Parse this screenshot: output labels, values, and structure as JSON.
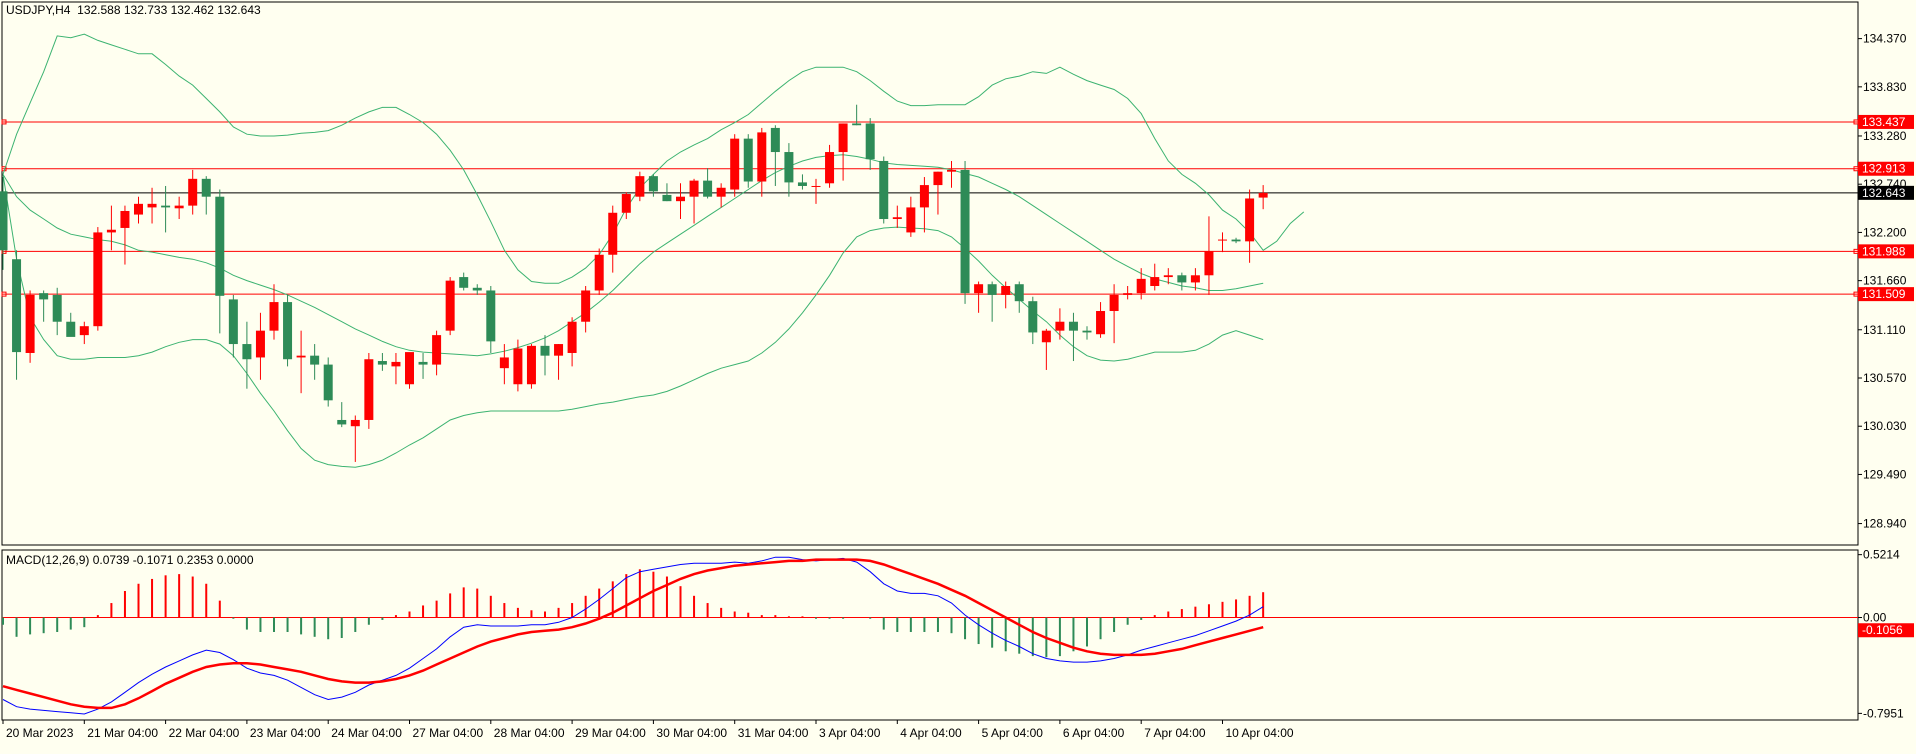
{
  "header": {
    "symbol": "USDJPY,H4",
    "ohlc": "132.588 132.733 132.462 132.643",
    "macd_label": "MACD(12,26,9) 0.0739 -0.1071 0.2353 0.0000"
  },
  "colors": {
    "background": "#FFFFF0",
    "bull": "#FF0000",
    "bear": "#2E8B57",
    "bands": "#3CB371",
    "level_line": "#FF0000",
    "price_line": "#000000",
    "macd_line": "#0000FF",
    "signal_line": "#FF0000"
  },
  "chart_data": [
    {
      "type": "candlestick",
      "title": "USDJPY,H4",
      "ylim": [
        128.7,
        134.78
      ],
      "y_ticks": [
        "134.370",
        "133.830",
        "133.280",
        "132.740",
        "132.200",
        "131.660",
        "131.110",
        "130.570",
        "130.030",
        "129.490",
        "128.940"
      ],
      "x_ticks": [
        "20 Mar 2023",
        "21 Mar 04:00",
        "22 Mar 04:00",
        "23 Mar 04:00",
        "24 Mar 04:00",
        "27 Mar 04:00",
        "28 Mar 04:00",
        "29 Mar 04:00",
        "30 Mar 04:00",
        "31 Mar 04:00",
        "3 Apr 04:00",
        "4 Apr 04:00",
        "5 Apr 04:00",
        "6 Apr 04:00",
        "7 Apr 04:00",
        "10 Apr 04:00"
      ],
      "levels": [
        "133.437",
        "132.913",
        "131.988",
        "131.509"
      ],
      "current_price": "132.643",
      "candles": [
        [
          132.66,
          132.82,
          131.78,
          132.0
        ],
        [
          131.9,
          132.0,
          130.55,
          130.86
        ],
        [
          130.85,
          131.55,
          130.74,
          131.5
        ],
        [
          131.52,
          131.55,
          131.2,
          131.45
        ],
        [
          131.5,
          131.58,
          131.05,
          131.2
        ],
        [
          131.2,
          131.3,
          131.08,
          131.03
        ],
        [
          131.05,
          131.2,
          130.95,
          131.15
        ],
        [
          131.15,
          132.26,
          131.1,
          132.2
        ],
        [
          132.2,
          132.5,
          132.0,
          132.23
        ],
        [
          132.25,
          132.5,
          131.84,
          132.44
        ],
        [
          132.4,
          132.6,
          132.3,
          132.52
        ],
        [
          132.48,
          132.7,
          132.3,
          132.52
        ],
        [
          132.5,
          132.72,
          132.2,
          132.48
        ],
        [
          132.47,
          132.6,
          132.35,
          132.5
        ],
        [
          132.5,
          132.9,
          132.4,
          132.8
        ],
        [
          132.8,
          132.83,
          132.4,
          132.6
        ],
        [
          132.6,
          132.68,
          131.07,
          131.49
        ],
        [
          131.45,
          131.5,
          130.8,
          130.95
        ],
        [
          130.95,
          131.2,
          130.45,
          130.78
        ],
        [
          130.8,
          131.3,
          130.55,
          131.1
        ],
        [
          131.1,
          131.62,
          131.0,
          131.42
        ],
        [
          131.42,
          131.5,
          130.7,
          130.78
        ],
        [
          130.8,
          131.1,
          130.4,
          130.82
        ],
        [
          130.82,
          130.95,
          130.55,
          130.72
        ],
        [
          130.72,
          130.8,
          130.25,
          130.32
        ],
        [
          130.1,
          130.3,
          130.02,
          130.05
        ],
        [
          130.03,
          130.15,
          129.63,
          130.1
        ],
        [
          130.1,
          130.85,
          130.0,
          130.78
        ],
        [
          130.76,
          130.85,
          130.65,
          130.72
        ],
        [
          130.7,
          130.85,
          130.5,
          130.75
        ],
        [
          130.5,
          130.8,
          130.45,
          130.86
        ],
        [
          130.75,
          130.85,
          130.56,
          130.72
        ],
        [
          130.72,
          131.1,
          130.6,
          131.05
        ],
        [
          131.1,
          131.7,
          131.05,
          131.66
        ],
        [
          131.7,
          131.75,
          131.55,
          131.58
        ],
        [
          131.58,
          131.62,
          131.5,
          131.55
        ],
        [
          131.55,
          131.6,
          130.85,
          130.98
        ],
        [
          130.68,
          130.95,
          130.5,
          130.8
        ],
        [
          130.5,
          131.0,
          130.42,
          130.9
        ],
        [
          130.5,
          130.95,
          130.45,
          130.93
        ],
        [
          130.93,
          131.05,
          130.6,
          130.82
        ],
        [
          130.82,
          130.95,
          130.55,
          130.95
        ],
        [
          130.85,
          131.25,
          130.7,
          131.2
        ],
        [
          131.2,
          131.6,
          131.08,
          131.55
        ],
        [
          131.55,
          132.02,
          131.5,
          131.95
        ],
        [
          131.95,
          132.5,
          131.75,
          132.42
        ],
        [
          132.42,
          132.65,
          132.35,
          132.63
        ],
        [
          132.6,
          132.88,
          132.55,
          132.83
        ],
        [
          132.83,
          132.85,
          132.6,
          132.66
        ],
        [
          132.62,
          132.75,
          132.55,
          132.55
        ],
        [
          132.55,
          132.75,
          132.35,
          132.6
        ],
        [
          132.6,
          132.8,
          132.3,
          132.78
        ],
        [
          132.78,
          132.92,
          132.58,
          132.6
        ],
        [
          132.6,
          132.75,
          132.48,
          132.7
        ],
        [
          132.68,
          133.3,
          132.6,
          133.25
        ],
        [
          133.25,
          133.3,
          132.7,
          132.77
        ],
        [
          132.77,
          133.37,
          132.6,
          133.32
        ],
        [
          133.37,
          133.4,
          132.72,
          133.1
        ],
        [
          133.1,
          133.2,
          132.6,
          132.76
        ],
        [
          132.76,
          132.85,
          132.68,
          132.72
        ],
        [
          132.72,
          132.8,
          132.52,
          132.72
        ],
        [
          132.75,
          133.18,
          132.7,
          133.1
        ],
        [
          133.1,
          133.42,
          132.78,
          133.42
        ],
        [
          133.42,
          133.63,
          133.4,
          133.4
        ],
        [
          133.42,
          133.48,
          132.9,
          133.02
        ],
        [
          133.0,
          133.05,
          132.3,
          132.35
        ],
        [
          132.35,
          132.5,
          132.25,
          132.37
        ],
        [
          132.2,
          132.6,
          132.15,
          132.48
        ],
        [
          132.48,
          132.82,
          132.2,
          132.73
        ],
        [
          132.73,
          132.88,
          132.4,
          132.88
        ],
        [
          132.88,
          133.0,
          132.7,
          132.9
        ],
        [
          132.9,
          133.0,
          131.4,
          131.52
        ],
        [
          131.52,
          131.65,
          131.3,
          131.62
        ],
        [
          131.62,
          131.65,
          131.2,
          131.5
        ],
        [
          131.5,
          131.65,
          131.35,
          131.6
        ],
        [
          131.62,
          131.65,
          131.3,
          131.43
        ],
        [
          131.43,
          131.48,
          130.95,
          131.08
        ],
        [
          130.97,
          131.12,
          130.66,
          131.1
        ],
        [
          131.1,
          131.35,
          131.0,
          131.2
        ],
        [
          131.2,
          131.3,
          130.76,
          131.1
        ],
        [
          131.1,
          131.15,
          131.0,
          131.08
        ],
        [
          131.06,
          131.42,
          131.02,
          131.32
        ],
        [
          131.32,
          131.62,
          130.96,
          131.5
        ],
        [
          131.5,
          131.6,
          131.45,
          131.52
        ],
        [
          131.52,
          131.8,
          131.45,
          131.68
        ],
        [
          131.6,
          131.85,
          131.55,
          131.7
        ],
        [
          131.7,
          131.8,
          131.62,
          131.72
        ],
        [
          131.72,
          131.75,
          131.55,
          131.64
        ],
        [
          131.64,
          131.8,
          131.55,
          131.72
        ],
        [
          131.72,
          132.38,
          131.5,
          131.99
        ],
        [
          132.12,
          132.2,
          131.98,
          132.12
        ],
        [
          132.12,
          132.14,
          132.08,
          132.1
        ],
        [
          132.1,
          132.68,
          131.86,
          132.58
        ],
        [
          132.59,
          132.73,
          132.46,
          132.643
        ]
      ],
      "upper_band": [
        132.85,
        133.3,
        133.65,
        134.0,
        134.4,
        134.38,
        134.42,
        134.35,
        134.3,
        134.25,
        134.2,
        134.2,
        134.08,
        133.95,
        133.85,
        133.7,
        133.55,
        133.38,
        133.3,
        133.28,
        133.28,
        133.29,
        133.31,
        133.32,
        133.34,
        133.4,
        133.48,
        133.55,
        133.6,
        133.6,
        133.52,
        133.43,
        133.3,
        133.12,
        132.9,
        132.62,
        132.32,
        132.0,
        131.78,
        131.65,
        131.63,
        131.63,
        131.7,
        131.8,
        131.95,
        132.18,
        132.47,
        132.7,
        132.85,
        133.0,
        133.1,
        133.18,
        133.25,
        133.35,
        133.43,
        133.52,
        133.65,
        133.78,
        133.9,
        134.0,
        134.05,
        134.05,
        134.05,
        134.0,
        133.9,
        133.78,
        133.67,
        133.62,
        133.62,
        133.63,
        133.63,
        133.63,
        133.72,
        133.85,
        133.92,
        133.95,
        134.0,
        133.98,
        134.05,
        133.97,
        133.9,
        133.85,
        133.8,
        133.7,
        133.53,
        133.25,
        133.0,
        132.85,
        132.75,
        132.62,
        132.45,
        132.35,
        132.2,
        132.0,
        132.1,
        132.3,
        132.43
      ],
      "middle_band": [
        132.85,
        132.6,
        132.45,
        132.35,
        132.25,
        132.18,
        132.15,
        132.12,
        132.1,
        132.06,
        132.0,
        131.98,
        131.95,
        131.92,
        131.9,
        131.86,
        131.8,
        131.72,
        131.66,
        131.61,
        131.56,
        131.5,
        131.43,
        131.36,
        131.28,
        131.2,
        131.12,
        131.05,
        130.98,
        130.92,
        130.88,
        130.86,
        130.85,
        130.84,
        130.83,
        130.82,
        130.84,
        130.87,
        130.91,
        130.96,
        131.02,
        131.1,
        131.2,
        131.3,
        131.42,
        131.55,
        131.7,
        131.85,
        131.98,
        132.08,
        132.18,
        132.28,
        132.38,
        132.48,
        132.58,
        132.68,
        132.78,
        132.87,
        132.94,
        133.0,
        133.04,
        133.06,
        133.07,
        133.05,
        133.02,
        132.98,
        132.96,
        132.95,
        132.94,
        132.93,
        132.9,
        132.86,
        132.82,
        132.75,
        132.68,
        132.6,
        132.5,
        132.4,
        132.3,
        132.2,
        132.1,
        132.0,
        131.9,
        131.82,
        131.74,
        131.68,
        131.64,
        131.6,
        131.58,
        131.55,
        131.55,
        131.57,
        131.6,
        131.63
      ],
      "lower_band": [
        132.85,
        131.9,
        131.25,
        131.0,
        130.82,
        130.78,
        130.78,
        130.8,
        130.8,
        130.8,
        130.82,
        130.86,
        130.92,
        130.97,
        131.0,
        131.0,
        130.95,
        130.82,
        130.62,
        130.4,
        130.2,
        129.98,
        129.78,
        129.65,
        129.6,
        129.58,
        129.57,
        129.6,
        129.65,
        129.73,
        129.82,
        129.9,
        130.0,
        130.1,
        130.15,
        130.18,
        130.2,
        130.2,
        130.2,
        130.2,
        130.2,
        130.2,
        130.22,
        130.25,
        130.28,
        130.3,
        130.33,
        130.36,
        130.38,
        130.42,
        130.48,
        130.55,
        130.62,
        130.68,
        130.72,
        130.76,
        130.85,
        130.97,
        131.12,
        131.3,
        131.5,
        131.72,
        131.97,
        132.15,
        132.22,
        132.25,
        132.26,
        132.25,
        132.24,
        132.22,
        132.15,
        132.02,
        131.88,
        131.72,
        131.58,
        131.45,
        131.32,
        131.2,
        131.05,
        130.92,
        130.82,
        130.77,
        130.76,
        130.78,
        130.82,
        130.86,
        130.86,
        130.86,
        130.88,
        130.95,
        131.05,
        131.1,
        131.05,
        131.0
      ]
    },
    {
      "type": "macd",
      "title": "MACD(12,26,9) 0.0739 -0.1071 0.2353 0.0000",
      "ylim": [
        -0.85,
        0.56
      ],
      "y_ticks": [
        "0.5214",
        "0.00",
        "-0.7951"
      ],
      "signal_value": "-0.1056",
      "histogram": [
        -0.06,
        -0.16,
        -0.14,
        -0.13,
        -0.12,
        -0.1,
        -0.08,
        0.02,
        0.12,
        0.22,
        0.28,
        0.32,
        0.35,
        0.36,
        0.34,
        0.28,
        0.14,
        -0.01,
        -0.1,
        -0.12,
        -0.12,
        -0.12,
        -0.14,
        -0.16,
        -0.18,
        -0.17,
        -0.12,
        -0.06,
        -0.02,
        0.02,
        0.05,
        0.1,
        0.14,
        0.2,
        0.25,
        0.24,
        0.18,
        0.12,
        0.08,
        0.06,
        0.05,
        0.08,
        0.12,
        0.18,
        0.24,
        0.3,
        0.36,
        0.4,
        0.38,
        0.34,
        0.26,
        0.18,
        0.12,
        0.08,
        0.05,
        0.04,
        0.02,
        0.02,
        0.01,
        0.01,
        -0.01,
        -0.01,
        -0.01,
        0.0,
        -0.01,
        -0.1,
        -0.12,
        -0.12,
        -0.12,
        -0.12,
        -0.13,
        -0.18,
        -0.22,
        -0.25,
        -0.28,
        -0.3,
        -0.32,
        -0.33,
        -0.32,
        -0.28,
        -0.24,
        -0.18,
        -0.12,
        -0.06,
        -0.02,
        0.02,
        0.05,
        0.07,
        0.09,
        0.11,
        0.13,
        0.15,
        0.18,
        0.21
      ],
      "macd_line": [
        -0.68,
        -0.74,
        -0.76,
        -0.77,
        -0.78,
        -0.79,
        -0.8,
        -0.76,
        -0.7,
        -0.62,
        -0.54,
        -0.47,
        -0.41,
        -0.36,
        -0.31,
        -0.27,
        -0.29,
        -0.35,
        -0.42,
        -0.46,
        -0.48,
        -0.52,
        -0.58,
        -0.64,
        -0.68,
        -0.66,
        -0.62,
        -0.56,
        -0.52,
        -0.48,
        -0.42,
        -0.34,
        -0.26,
        -0.16,
        -0.08,
        -0.06,
        -0.07,
        -0.07,
        -0.07,
        -0.06,
        -0.06,
        -0.04,
        0.0,
        0.07,
        0.15,
        0.24,
        0.33,
        0.38,
        0.4,
        0.42,
        0.44,
        0.45,
        0.45,
        0.45,
        0.46,
        0.45,
        0.47,
        0.5,
        0.5,
        0.48,
        0.47,
        0.48,
        0.49,
        0.46,
        0.38,
        0.28,
        0.22,
        0.2,
        0.2,
        0.18,
        0.12,
        0.02,
        -0.06,
        -0.13,
        -0.19,
        -0.24,
        -0.3,
        -0.34,
        -0.36,
        -0.37,
        -0.37,
        -0.36,
        -0.34,
        -0.31,
        -0.27,
        -0.24,
        -0.21,
        -0.18,
        -0.15,
        -0.11,
        -0.07,
        -0.03,
        0.02,
        0.09
      ],
      "signal_line": [
        -0.57,
        -0.6,
        -0.63,
        -0.66,
        -0.69,
        -0.72,
        -0.74,
        -0.75,
        -0.75,
        -0.72,
        -0.67,
        -0.61,
        -0.55,
        -0.5,
        -0.45,
        -0.41,
        -0.39,
        -0.38,
        -0.38,
        -0.39,
        -0.41,
        -0.43,
        -0.45,
        -0.48,
        -0.51,
        -0.53,
        -0.54,
        -0.54,
        -0.53,
        -0.51,
        -0.48,
        -0.44,
        -0.39,
        -0.34,
        -0.29,
        -0.24,
        -0.2,
        -0.17,
        -0.14,
        -0.12,
        -0.11,
        -0.1,
        -0.08,
        -0.05,
        -0.01,
        0.04,
        0.1,
        0.16,
        0.22,
        0.27,
        0.32,
        0.36,
        0.39,
        0.41,
        0.43,
        0.44,
        0.45,
        0.46,
        0.47,
        0.47,
        0.48,
        0.48,
        0.48,
        0.48,
        0.47,
        0.44,
        0.4,
        0.36,
        0.32,
        0.28,
        0.23,
        0.18,
        0.12,
        0.06,
        0.0,
        -0.06,
        -0.12,
        -0.17,
        -0.21,
        -0.25,
        -0.28,
        -0.3,
        -0.31,
        -0.31,
        -0.31,
        -0.3,
        -0.28,
        -0.26,
        -0.23,
        -0.2,
        -0.17,
        -0.14,
        -0.11,
        -0.08
      ]
    }
  ]
}
